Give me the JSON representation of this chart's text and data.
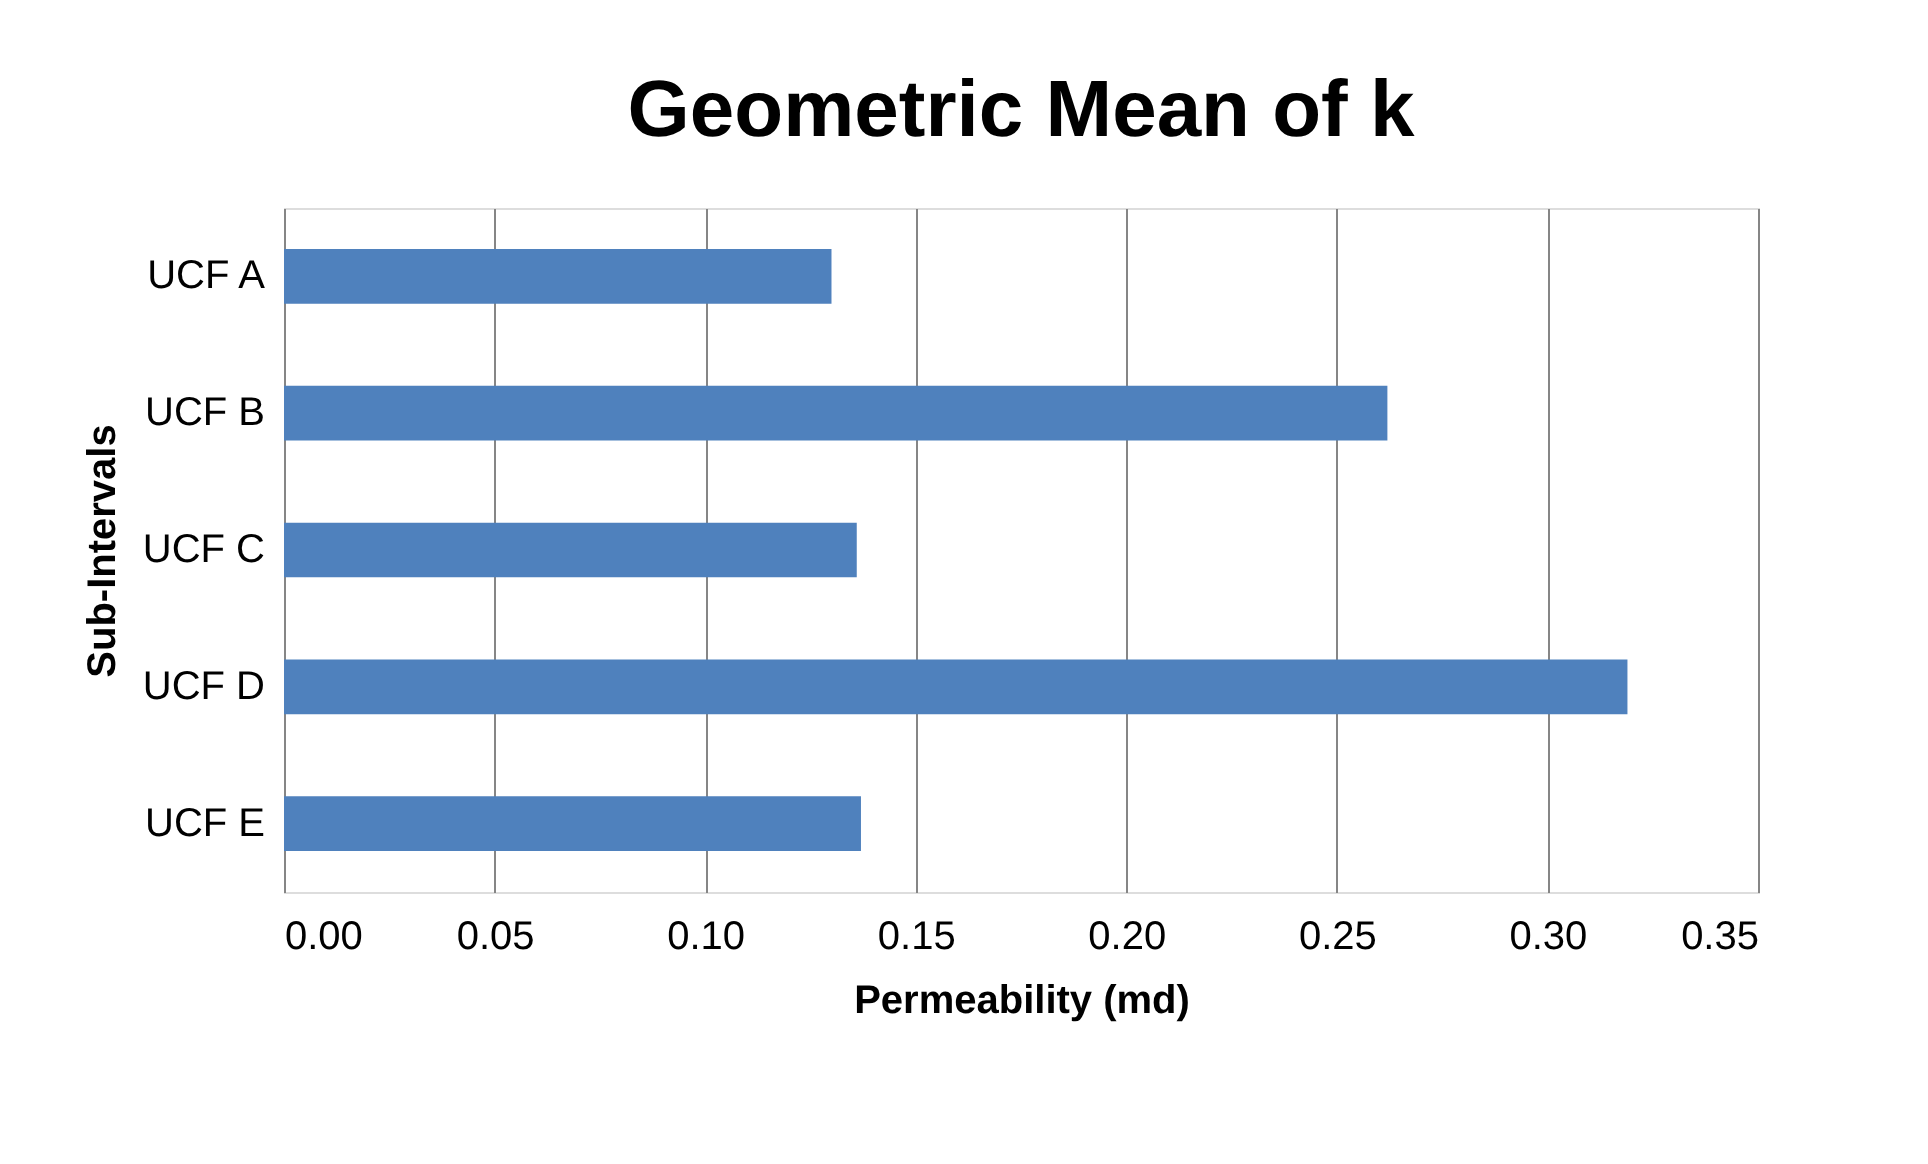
{
  "chart_data": {
    "type": "bar",
    "orientation": "horizontal",
    "title": "Geometric Mean of k",
    "xlabel": "Permeability (md)",
    "ylabel": "Sub-Intervals",
    "categories": [
      "UCF A",
      "UCF B",
      "UCF C",
      "UCF D",
      "UCF E"
    ],
    "values": [
      0.13,
      0.262,
      0.136,
      0.319,
      0.137
    ],
    "color": "#4f81bd",
    "xlim": [
      0,
      0.35
    ],
    "xticks": [
      {
        "value": 0,
        "label": "0.00"
      },
      {
        "value": 0.05,
        "label": "0.05"
      },
      {
        "value": 0.1,
        "label": "0.10"
      },
      {
        "value": 0.15,
        "label": "0.15"
      },
      {
        "value": 0.2,
        "label": "0.20"
      },
      {
        "value": 0.25,
        "label": "0.25"
      },
      {
        "value": 0.3,
        "label": "0.30"
      },
      {
        "value": 0.35,
        "label": "0.35"
      }
    ],
    "grid": "x"
  }
}
